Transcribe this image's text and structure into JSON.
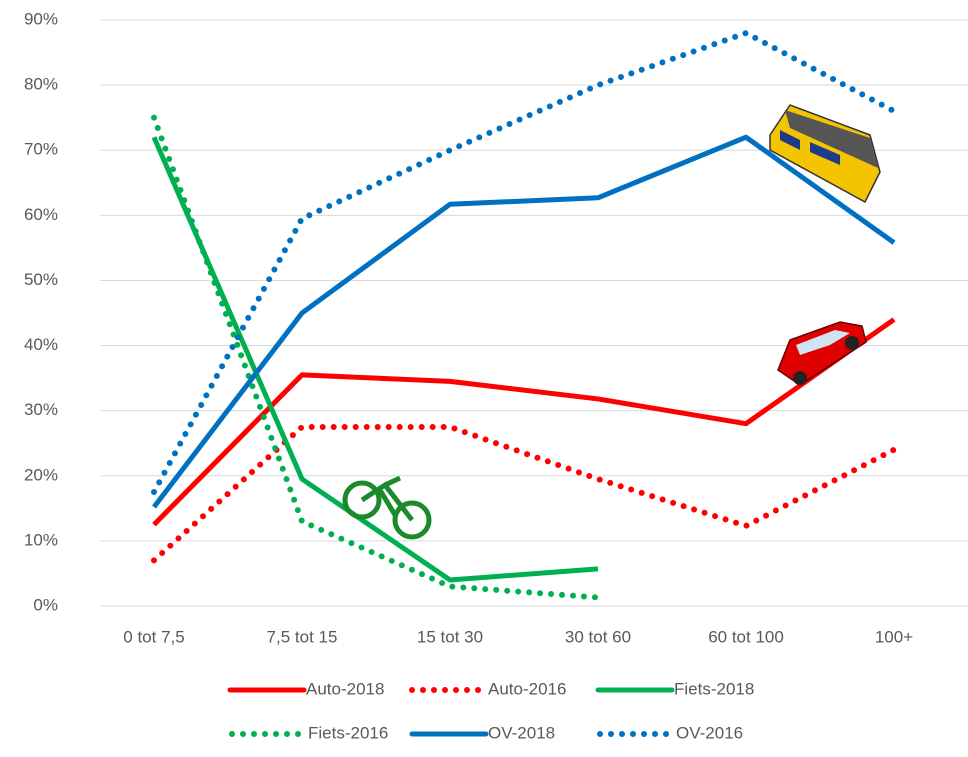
{
  "chart_data": {
    "type": "line",
    "categories": [
      "0 tot 7,5",
      "7,5 tot 15",
      "15 tot 30",
      "30 tot 60",
      "60 tot 100",
      "100+"
    ],
    "series": [
      {
        "name": "Auto-2018",
        "color": "#ff0000",
        "style": "solid",
        "values": [
          12.5,
          35.5,
          34.5,
          31.8,
          28,
          44
        ]
      },
      {
        "name": "Auto-2016",
        "color": "#ff0000",
        "style": "dotted",
        "values": [
          7,
          27.5,
          27.5,
          19.5,
          12.3,
          24
        ]
      },
      {
        "name": "Fiets-2018",
        "color": "#00b050",
        "style": "solid",
        "values": [
          72,
          19.5,
          4,
          5.7,
          null,
          null
        ]
      },
      {
        "name": "Fiets-2016",
        "color": "#00b050",
        "style": "dotted",
        "values": [
          75,
          13,
          3,
          1.3,
          null,
          null
        ]
      },
      {
        "name": "OV-2018",
        "color": "#0070c0",
        "style": "solid",
        "values": [
          15.2,
          45,
          61.7,
          62.7,
          72,
          55.8
        ]
      },
      {
        "name": "OV-2016",
        "color": "#0070c0",
        "style": "dotted",
        "values": [
          17.5,
          59.5,
          70,
          80,
          88,
          76
        ]
      }
    ],
    "ylim": [
      0,
      90
    ],
    "yticks": [
      {
        "value": 0,
        "label": "0%"
      },
      {
        "value": 10,
        "label": "10%"
      },
      {
        "value": 20,
        "label": "20%"
      },
      {
        "value": 30,
        "label": "30%"
      },
      {
        "value": 40,
        "label": "40%"
      },
      {
        "value": 50,
        "label": "50%"
      },
      {
        "value": 60,
        "label": "60%"
      },
      {
        "value": 70,
        "label": "70%"
      },
      {
        "value": 80,
        "label": "80%"
      },
      {
        "value": 90,
        "label": "90%"
      }
    ],
    "grid": true
  }
}
